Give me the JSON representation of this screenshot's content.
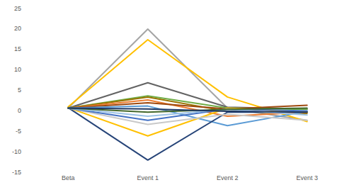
{
  "chart_data": {
    "type": "line",
    "categories": [
      "Beta",
      "Event 1",
      "Event 2",
      "Event 3"
    ],
    "ylim": [
      -15,
      25
    ],
    "yticks": [
      -15,
      -10,
      -5,
      0,
      5,
      10,
      15,
      20,
      25
    ],
    "grid": false,
    "series": [
      {
        "color": "#a5a5a5",
        "values": [
          0.5,
          19.8,
          0.5,
          -2.5
        ]
      },
      {
        "color": "#ffc000",
        "values": [
          0.8,
          17.2,
          3.2,
          -2.8
        ]
      },
      {
        "color": "#636363",
        "values": [
          0.5,
          6.7,
          0.7,
          0.3
        ]
      },
      {
        "color": "#70ad47",
        "values": [
          0.5,
          3.5,
          0.5,
          0.2
        ]
      },
      {
        "color": "#997300",
        "values": [
          0.5,
          3.2,
          -0.3,
          -0.8
        ]
      },
      {
        "color": "#ed7d31",
        "values": [
          0.5,
          2.5,
          -1.5,
          -0.5
        ]
      },
      {
        "color": "#9e480e",
        "values": [
          0.5,
          1.8,
          0.3,
          1.2
        ]
      },
      {
        "color": "#5b9bd5",
        "values": [
          0.5,
          1.0,
          -3.8,
          -0.3
        ]
      },
      {
        "color": "#264478",
        "values": [
          0.6,
          -12.2,
          -0.5,
          -0.5
        ]
      },
      {
        "color": "#ffc000",
        "values": [
          0.6,
          -6.3,
          0.5,
          -0.5
        ]
      },
      {
        "color": "#c9c9c9",
        "values": [
          0.5,
          -3.5,
          -1.0,
          -2.5
        ]
      },
      {
        "color": "#4472c4",
        "values": [
          0.5,
          -2.5,
          0.3,
          -0.2
        ]
      },
      {
        "color": "#9dc3e6",
        "values": [
          0.5,
          -1.5,
          0.2,
          -1.2
        ]
      },
      {
        "color": "#43682b",
        "values": [
          0.5,
          -0.5,
          0.2,
          0.5
        ]
      },
      {
        "color": "#1f3864",
        "values": [
          0.5,
          0.3,
          -0.3,
          -0.5
        ]
      }
    ]
  }
}
